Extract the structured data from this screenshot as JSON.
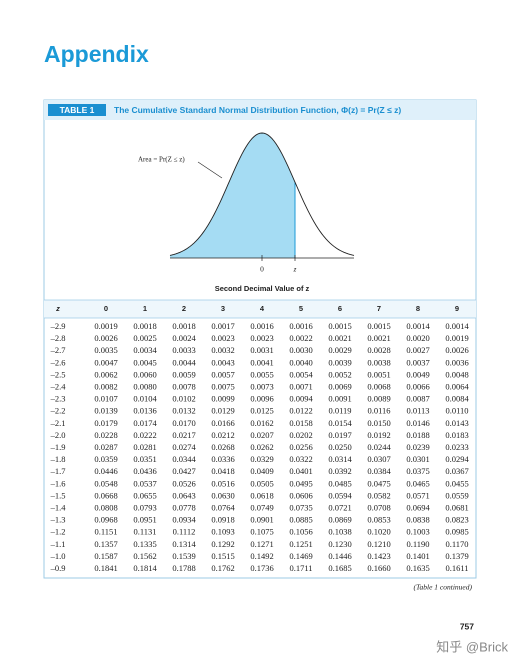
{
  "header": {
    "title": "Appendix"
  },
  "table": {
    "label": "TABLE 1",
    "title": "The Cumulative Standard Normal Distribution Function, Φ(z) = Pr(Z ≤ z)",
    "figure": {
      "area_label": "Area = Pr(Z ≤ z)",
      "zero_label": "0",
      "z_label": "z"
    },
    "column_group": "Second Decimal Value of z",
    "columns": [
      "z",
      "0",
      "1",
      "2",
      "3",
      "4",
      "5",
      "6",
      "7",
      "8",
      "9"
    ],
    "rows": [
      [
        "–2.9",
        "0.0019",
        "0.0018",
        "0.0018",
        "0.0017",
        "0.0016",
        "0.0016",
        "0.0015",
        "0.0015",
        "0.0014",
        "0.0014"
      ],
      [
        "–2.8",
        "0.0026",
        "0.0025",
        "0.0024",
        "0.0023",
        "0.0023",
        "0.0022",
        "0.0021",
        "0.0021",
        "0.0020",
        "0.0019"
      ],
      [
        "–2.7",
        "0.0035",
        "0.0034",
        "0.0033",
        "0.0032",
        "0.0031",
        "0.0030",
        "0.0029",
        "0.0028",
        "0.0027",
        "0.0026"
      ],
      [
        "–2.6",
        "0.0047",
        "0.0045",
        "0.0044",
        "0.0043",
        "0.0041",
        "0.0040",
        "0.0039",
        "0.0038",
        "0.0037",
        "0.0036"
      ],
      [
        "–2.5",
        "0.0062",
        "0.0060",
        "0.0059",
        "0.0057",
        "0.0055",
        "0.0054",
        "0.0052",
        "0.0051",
        "0.0049",
        "0.0048"
      ],
      [
        "–2.4",
        "0.0082",
        "0.0080",
        "0.0078",
        "0.0075",
        "0.0073",
        "0.0071",
        "0.0069",
        "0.0068",
        "0.0066",
        "0.0064"
      ],
      [
        "–2.3",
        "0.0107",
        "0.0104",
        "0.0102",
        "0.0099",
        "0.0096",
        "0.0094",
        "0.0091",
        "0.0089",
        "0.0087",
        "0.0084"
      ],
      [
        "–2.2",
        "0.0139",
        "0.0136",
        "0.0132",
        "0.0129",
        "0.0125",
        "0.0122",
        "0.0119",
        "0.0116",
        "0.0113",
        "0.0110"
      ],
      [
        "–2.1",
        "0.0179",
        "0.0174",
        "0.0170",
        "0.0166",
        "0.0162",
        "0.0158",
        "0.0154",
        "0.0150",
        "0.0146",
        "0.0143"
      ],
      [
        "–2.0",
        "0.0228",
        "0.0222",
        "0.0217",
        "0.0212",
        "0.0207",
        "0.0202",
        "0.0197",
        "0.0192",
        "0.0188",
        "0.0183"
      ],
      [
        "–1.9",
        "0.0287",
        "0.0281",
        "0.0274",
        "0.0268",
        "0.0262",
        "0.0256",
        "0.0250",
        "0.0244",
        "0.0239",
        "0.0233"
      ],
      [
        "–1.8",
        "0.0359",
        "0.0351",
        "0.0344",
        "0.0336",
        "0.0329",
        "0.0322",
        "0.0314",
        "0.0307",
        "0.0301",
        "0.0294"
      ],
      [
        "–1.7",
        "0.0446",
        "0.0436",
        "0.0427",
        "0.0418",
        "0.0409",
        "0.0401",
        "0.0392",
        "0.0384",
        "0.0375",
        "0.0367"
      ],
      [
        "–1.6",
        "0.0548",
        "0.0537",
        "0.0526",
        "0.0516",
        "0.0505",
        "0.0495",
        "0.0485",
        "0.0475",
        "0.0465",
        "0.0455"
      ],
      [
        "–1.5",
        "0.0668",
        "0.0655",
        "0.0643",
        "0.0630",
        "0.0618",
        "0.0606",
        "0.0594",
        "0.0582",
        "0.0571",
        "0.0559"
      ],
      [
        "–1.4",
        "0.0808",
        "0.0793",
        "0.0778",
        "0.0764",
        "0.0749",
        "0.0735",
        "0.0721",
        "0.0708",
        "0.0694",
        "0.0681"
      ],
      [
        "–1.3",
        "0.0968",
        "0.0951",
        "0.0934",
        "0.0918",
        "0.0901",
        "0.0885",
        "0.0869",
        "0.0853",
        "0.0838",
        "0.0823"
      ],
      [
        "–1.2",
        "0.1151",
        "0.1131",
        "0.1112",
        "0.1093",
        "0.1075",
        "0.1056",
        "0.1038",
        "0.1020",
        "0.1003",
        "0.0985"
      ],
      [
        "–1.1",
        "0.1357",
        "0.1335",
        "0.1314",
        "0.1292",
        "0.1271",
        "0.1251",
        "0.1230",
        "0.1210",
        "0.1190",
        "0.1170"
      ],
      [
        "–1.0",
        "0.1587",
        "0.1562",
        "0.1539",
        "0.1515",
        "0.1492",
        "0.1469",
        "0.1446",
        "0.1423",
        "0.1401",
        "0.1379"
      ],
      [
        "–0.9",
        "0.1841",
        "0.1814",
        "0.1788",
        "0.1762",
        "0.1736",
        "0.1711",
        "0.1685",
        "0.1660",
        "0.1635",
        "0.1611"
      ]
    ],
    "continued": "(Table 1 continued)"
  },
  "footer": {
    "page_number": "757",
    "watermark": "知乎 @Brick"
  }
}
